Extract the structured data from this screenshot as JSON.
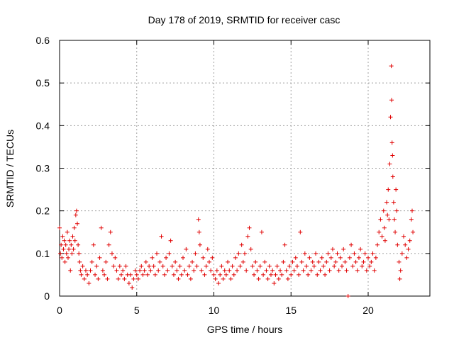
{
  "chart_data": {
    "type": "scatter",
    "title": "Day 178 of 2019, SRMTID for receiver casc",
    "xlabel": "GPS time / hours",
    "ylabel": "SRMTID / TECUs",
    "xlim": [
      0,
      24
    ],
    "ylim": [
      0,
      0.6
    ],
    "x_ticks": [
      0,
      5,
      10,
      15,
      20
    ],
    "x_tick_labels": [
      "0",
      "5",
      "10",
      "15",
      "20"
    ],
    "y_ticks": [
      0,
      0.1,
      0.2,
      0.3,
      0.4,
      0.5,
      0.6
    ],
    "y_tick_labels": [
      "0",
      "0.1",
      "0.2",
      "0.3",
      "0.4",
      "0.5",
      "0.6"
    ],
    "grid": true,
    "marker": "+",
    "marker_color": "#e00000",
    "series": [
      {
        "name": "SRMTID",
        "points": [
          [
            0.0,
            0.16
          ],
          [
            0.05,
            0.1
          ],
          [
            0.1,
            0.12
          ],
          [
            0.15,
            0.09
          ],
          [
            0.2,
            0.14
          ],
          [
            0.25,
            0.11
          ],
          [
            0.3,
            0.13
          ],
          [
            0.35,
            0.08
          ],
          [
            0.4,
            0.12
          ],
          [
            0.45,
            0.1
          ],
          [
            0.5,
            0.15
          ],
          [
            0.55,
            0.09
          ],
          [
            0.6,
            0.11
          ],
          [
            0.65,
            0.13
          ],
          [
            0.7,
            0.06
          ],
          [
            0.75,
            0.12
          ],
          [
            0.8,
            0.1
          ],
          [
            0.85,
            0.14
          ],
          [
            0.9,
            0.11
          ],
          [
            0.95,
            0.16
          ],
          [
            1.0,
            0.13
          ],
          [
            1.05,
            0.19
          ],
          [
            1.1,
            0.2
          ],
          [
            1.15,
            0.17
          ],
          [
            1.2,
            0.12
          ],
          [
            1.25,
            0.1
          ],
          [
            1.3,
            0.08
          ],
          [
            1.35,
            0.06
          ],
          [
            1.4,
            0.05
          ],
          [
            1.5,
            0.07
          ],
          [
            1.6,
            0.04
          ],
          [
            1.7,
            0.06
          ],
          [
            1.8,
            0.05
          ],
          [
            1.9,
            0.03
          ],
          [
            2.0,
            0.06
          ],
          [
            2.1,
            0.08
          ],
          [
            2.2,
            0.12
          ],
          [
            2.3,
            0.05
          ],
          [
            2.4,
            0.07
          ],
          [
            2.5,
            0.04
          ],
          [
            2.6,
            0.09
          ],
          [
            2.7,
            0.16
          ],
          [
            2.8,
            0.06
          ],
          [
            2.9,
            0.05
          ],
          [
            3.0,
            0.08
          ],
          [
            3.1,
            0.04
          ],
          [
            3.2,
            0.12
          ],
          [
            3.3,
            0.15
          ],
          [
            3.4,
            0.1
          ],
          [
            3.5,
            0.07
          ],
          [
            3.6,
            0.09
          ],
          [
            3.7,
            0.06
          ],
          [
            3.8,
            0.04
          ],
          [
            3.9,
            0.07
          ],
          [
            4.0,
            0.05
          ],
          [
            4.1,
            0.06
          ],
          [
            4.2,
            0.04
          ],
          [
            4.3,
            0.07
          ],
          [
            4.4,
            0.05
          ],
          [
            4.5,
            0.03
          ],
          [
            4.6,
            0.05
          ],
          [
            4.7,
            0.02
          ],
          [
            4.8,
            0.04
          ],
          [
            4.9,
            0.06
          ],
          [
            5.0,
            0.05
          ],
          [
            5.1,
            0.04
          ],
          [
            5.2,
            0.06
          ],
          [
            5.3,
            0.07
          ],
          [
            5.4,
            0.05
          ],
          [
            5.5,
            0.06
          ],
          [
            5.6,
            0.08
          ],
          [
            5.7,
            0.05
          ],
          [
            5.8,
            0.07
          ],
          [
            5.9,
            0.06
          ],
          [
            6.0,
            0.09
          ],
          [
            6.1,
            0.07
          ],
          [
            6.2,
            0.05
          ],
          [
            6.3,
            0.1
          ],
          [
            6.4,
            0.06
          ],
          [
            6.5,
            0.08
          ],
          [
            6.6,
            0.14
          ],
          [
            6.7,
            0.07
          ],
          [
            6.8,
            0.05
          ],
          [
            6.9,
            0.09
          ],
          [
            7.0,
            0.06
          ],
          [
            7.1,
            0.1
          ],
          [
            7.2,
            0.13
          ],
          [
            7.3,
            0.07
          ],
          [
            7.4,
            0.05
          ],
          [
            7.5,
            0.08
          ],
          [
            7.6,
            0.06
          ],
          [
            7.7,
            0.04
          ],
          [
            7.8,
            0.07
          ],
          [
            7.9,
            0.05
          ],
          [
            8.0,
            0.09
          ],
          [
            8.1,
            0.06
          ],
          [
            8.2,
            0.11
          ],
          [
            8.3,
            0.05
          ],
          [
            8.4,
            0.07
          ],
          [
            8.5,
            0.04
          ],
          [
            8.6,
            0.08
          ],
          [
            8.7,
            0.06
          ],
          [
            8.8,
            0.1
          ],
          [
            8.9,
            0.07
          ],
          [
            9.0,
            0.18
          ],
          [
            9.05,
            0.15
          ],
          [
            9.1,
            0.12
          ],
          [
            9.2,
            0.06
          ],
          [
            9.3,
            0.09
          ],
          [
            9.4,
            0.05
          ],
          [
            9.5,
            0.07
          ],
          [
            9.6,
            0.11
          ],
          [
            9.7,
            0.08
          ],
          [
            9.8,
            0.06
          ],
          [
            9.9,
            0.09
          ],
          [
            10.0,
            0.05
          ],
          [
            10.1,
            0.04
          ],
          [
            10.2,
            0.06
          ],
          [
            10.3,
            0.03
          ],
          [
            10.4,
            0.05
          ],
          [
            10.5,
            0.07
          ],
          [
            10.6,
            0.04
          ],
          [
            10.7,
            0.06
          ],
          [
            10.8,
            0.05
          ],
          [
            10.9,
            0.08
          ],
          [
            11.0,
            0.06
          ],
          [
            11.1,
            0.04
          ],
          [
            11.2,
            0.07
          ],
          [
            11.3,
            0.05
          ],
          [
            11.4,
            0.09
          ],
          [
            11.5,
            0.06
          ],
          [
            11.6,
            0.1
          ],
          [
            11.7,
            0.07
          ],
          [
            11.8,
            0.12
          ],
          [
            11.9,
            0.08
          ],
          [
            12.0,
            0.1
          ],
          [
            12.1,
            0.06
          ],
          [
            12.2,
            0.14
          ],
          [
            12.3,
            0.16
          ],
          [
            12.4,
            0.11
          ],
          [
            12.5,
            0.07
          ],
          [
            12.6,
            0.05
          ],
          [
            12.7,
            0.08
          ],
          [
            12.8,
            0.06
          ],
          [
            12.9,
            0.04
          ],
          [
            13.0,
            0.07
          ],
          [
            13.1,
            0.15
          ],
          [
            13.2,
            0.05
          ],
          [
            13.3,
            0.08
          ],
          [
            13.4,
            0.06
          ],
          [
            13.5,
            0.04
          ],
          [
            13.6,
            0.07
          ],
          [
            13.7,
            0.05
          ],
          [
            13.8,
            0.06
          ],
          [
            13.9,
            0.03
          ],
          [
            14.0,
            0.05
          ],
          [
            14.1,
            0.07
          ],
          [
            14.2,
            0.04
          ],
          [
            14.3,
            0.06
          ],
          [
            14.4,
            0.05
          ],
          [
            14.5,
            0.08
          ],
          [
            14.6,
            0.12
          ],
          [
            14.7,
            0.06
          ],
          [
            14.8,
            0.04
          ],
          [
            14.9,
            0.07
          ],
          [
            15.0,
            0.05
          ],
          [
            15.1,
            0.08
          ],
          [
            15.2,
            0.06
          ],
          [
            15.3,
            0.09
          ],
          [
            15.4,
            0.07
          ],
          [
            15.5,
            0.05
          ],
          [
            15.6,
            0.15
          ],
          [
            15.7,
            0.08
          ],
          [
            15.8,
            0.06
          ],
          [
            15.9,
            0.1
          ],
          [
            16.0,
            0.07
          ],
          [
            16.1,
            0.05
          ],
          [
            16.2,
            0.09
          ],
          [
            16.3,
            0.06
          ],
          [
            16.4,
            0.08
          ],
          [
            16.5,
            0.07
          ],
          [
            16.6,
            0.1
          ],
          [
            16.7,
            0.05
          ],
          [
            16.8,
            0.08
          ],
          [
            16.9,
            0.06
          ],
          [
            17.0,
            0.09
          ],
          [
            17.1,
            0.07
          ],
          [
            17.2,
            0.05
          ],
          [
            17.3,
            0.08
          ],
          [
            17.4,
            0.1
          ],
          [
            17.5,
            0.06
          ],
          [
            17.6,
            0.09
          ],
          [
            17.7,
            0.11
          ],
          [
            17.8,
            0.07
          ],
          [
            17.9,
            0.08
          ],
          [
            18.0,
            0.1
          ],
          [
            18.1,
            0.06
          ],
          [
            18.2,
            0.09
          ],
          [
            18.3,
            0.07
          ],
          [
            18.4,
            0.11
          ],
          [
            18.5,
            0.08
          ],
          [
            18.6,
            0.06
          ],
          [
            18.7,
            0.0
          ],
          [
            18.8,
            0.09
          ],
          [
            18.9,
            0.12
          ],
          [
            19.0,
            0.07
          ],
          [
            19.1,
            0.1
          ],
          [
            19.2,
            0.08
          ],
          [
            19.3,
            0.06
          ],
          [
            19.4,
            0.09
          ],
          [
            19.5,
            0.11
          ],
          [
            19.6,
            0.07
          ],
          [
            19.7,
            0.08
          ],
          [
            19.8,
            0.1
          ],
          [
            19.9,
            0.06
          ],
          [
            20.0,
            0.09
          ],
          [
            20.1,
            0.07
          ],
          [
            20.2,
            0.08
          ],
          [
            20.3,
            0.1
          ],
          [
            20.4,
            0.06
          ],
          [
            20.5,
            0.09
          ],
          [
            20.6,
            0.12
          ],
          [
            20.7,
            0.15
          ],
          [
            20.8,
            0.18
          ],
          [
            20.9,
            0.14
          ],
          [
            21.0,
            0.2
          ],
          [
            21.05,
            0.16
          ],
          [
            21.1,
            0.13
          ],
          [
            21.2,
            0.22
          ],
          [
            21.25,
            0.19
          ],
          [
            21.3,
            0.25
          ],
          [
            21.35,
            0.18
          ],
          [
            21.4,
            0.31
          ],
          [
            21.45,
            0.42
          ],
          [
            21.5,
            0.54
          ],
          [
            21.52,
            0.46
          ],
          [
            21.55,
            0.36
          ],
          [
            21.58,
            0.33
          ],
          [
            21.6,
            0.28
          ],
          [
            21.65,
            0.22
          ],
          [
            21.7,
            0.18
          ],
          [
            21.75,
            0.15
          ],
          [
            21.8,
            0.25
          ],
          [
            21.85,
            0.2
          ],
          [
            21.9,
            0.12
          ],
          [
            22.0,
            0.08
          ],
          [
            22.05,
            0.04
          ],
          [
            22.1,
            0.06
          ],
          [
            22.2,
            0.1
          ],
          [
            22.3,
            0.14
          ],
          [
            22.4,
            0.12
          ],
          [
            22.5,
            0.09
          ],
          [
            22.6,
            0.11
          ],
          [
            22.7,
            0.13
          ],
          [
            22.8,
            0.18
          ],
          [
            22.85,
            0.2
          ],
          [
            22.9,
            0.15
          ]
        ]
      }
    ]
  }
}
